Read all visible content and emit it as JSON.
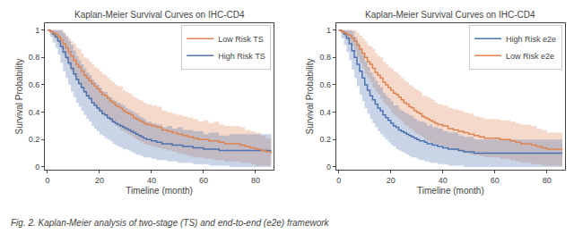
{
  "chart_data": [
    {
      "type": "step",
      "title": "Kaplan-Meier Survival Curves on IHC-CD4",
      "x_label": "Timeline (month)",
      "y_label": "Survival Probability",
      "xlim": [
        -1,
        87
      ],
      "ylim": [
        -0.02,
        1.05
      ],
      "xticks": [
        0,
        20,
        40,
        60,
        80
      ],
      "yticks": [
        0.0,
        0.2,
        0.4,
        0.6,
        0.8,
        1.0
      ],
      "grid": false,
      "legend": "upper right",
      "annotations": [
        {
          "text": "Fig. 2. Kaplan-Meier analysis of two-stage (TS) and end-to-end (e2e) framework"
        }
      ],
      "series": [
        {
          "name": "High Risk TS",
          "color": "#4C72B0",
          "x": [
            0,
            1,
            2,
            3,
            4,
            5,
            6,
            7,
            8,
            9,
            10,
            11,
            12,
            13,
            14,
            15,
            16,
            17,
            18,
            19,
            20,
            21,
            22,
            23,
            24,
            25,
            26,
            27,
            28,
            29,
            30,
            31,
            32,
            33,
            34,
            35,
            36,
            37,
            38,
            40,
            42,
            44,
            46,
            48,
            50,
            52,
            54,
            56,
            58,
            60,
            62,
            64,
            66,
            68,
            70,
            72,
            74,
            76,
            78,
            80,
            82,
            84,
            86
          ],
          "values": [
            1.0,
            0.99,
            0.97,
            0.95,
            0.92,
            0.88,
            0.84,
            0.8,
            0.76,
            0.72,
            0.68,
            0.64,
            0.61,
            0.58,
            0.55,
            0.52,
            0.5,
            0.47,
            0.45,
            0.43,
            0.41,
            0.39,
            0.38,
            0.36,
            0.35,
            0.33,
            0.32,
            0.31,
            0.3,
            0.29,
            0.28,
            0.27,
            0.26,
            0.25,
            0.24,
            0.23,
            0.22,
            0.21,
            0.2,
            0.19,
            0.18,
            0.17,
            0.17,
            0.16,
            0.16,
            0.15,
            0.15,
            0.14,
            0.14,
            0.13,
            0.13,
            0.13,
            0.12,
            0.12,
            0.12,
            0.12,
            0.12,
            0.12,
            0.12,
            0.12,
            0.12,
            0.12,
            0.12
          ],
          "lower": [
            1.0,
            0.95,
            0.91,
            0.87,
            0.82,
            0.76,
            0.7,
            0.65,
            0.6,
            0.55,
            0.51,
            0.47,
            0.44,
            0.41,
            0.38,
            0.35,
            0.33,
            0.3,
            0.28,
            0.26,
            0.24,
            0.23,
            0.21,
            0.2,
            0.19,
            0.17,
            0.16,
            0.15,
            0.14,
            0.13,
            0.13,
            0.12,
            0.11,
            0.1,
            0.09,
            0.09,
            0.08,
            0.07,
            0.07,
            0.06,
            0.05,
            0.05,
            0.04,
            0.04,
            0.03,
            0.03,
            0.03,
            0.02,
            0.02,
            0.02,
            0.01,
            0.01,
            0.01,
            0.01,
            0.0,
            0.0,
            0.0,
            0.0,
            0.0,
            0.0,
            0.0,
            0.0,
            0.0
          ],
          "upper": [
            1.0,
            1.0,
            1.0,
            1.0,
            1.0,
            1.0,
            0.98,
            0.95,
            0.92,
            0.89,
            0.85,
            0.81,
            0.78,
            0.75,
            0.72,
            0.69,
            0.67,
            0.64,
            0.62,
            0.6,
            0.58,
            0.55,
            0.55,
            0.52,
            0.51,
            0.49,
            0.48,
            0.47,
            0.46,
            0.45,
            0.43,
            0.42,
            0.41,
            0.4,
            0.39,
            0.37,
            0.36,
            0.35,
            0.33,
            0.32,
            0.31,
            0.29,
            0.3,
            0.28,
            0.29,
            0.27,
            0.27,
            0.26,
            0.26,
            0.24,
            0.25,
            0.25,
            0.23,
            0.23,
            0.24,
            0.24,
            0.24,
            0.24,
            0.24,
            0.24,
            0.24,
            0.24,
            0.24
          ]
        },
        {
          "name": "Low Risk TS",
          "color": "#DD8452",
          "x": [
            0,
            1,
            2,
            3,
            4,
            5,
            6,
            7,
            8,
            9,
            10,
            11,
            12,
            13,
            14,
            15,
            16,
            17,
            18,
            19,
            20,
            21,
            22,
            23,
            24,
            25,
            26,
            27,
            28,
            29,
            30,
            31,
            32,
            33,
            34,
            35,
            36,
            37,
            38,
            40,
            42,
            44,
            46,
            48,
            50,
            52,
            54,
            56,
            58,
            60,
            62,
            64,
            66,
            68,
            70,
            72,
            74,
            76,
            78,
            80,
            82,
            84,
            86
          ],
          "values": [
            1.0,
            0.99,
            0.98,
            0.97,
            0.95,
            0.93,
            0.9,
            0.87,
            0.84,
            0.81,
            0.78,
            0.75,
            0.73,
            0.7,
            0.67,
            0.65,
            0.63,
            0.61,
            0.59,
            0.57,
            0.55,
            0.53,
            0.52,
            0.5,
            0.48,
            0.47,
            0.45,
            0.44,
            0.43,
            0.41,
            0.4,
            0.39,
            0.38,
            0.36,
            0.35,
            0.34,
            0.33,
            0.32,
            0.31,
            0.3,
            0.29,
            0.27,
            0.26,
            0.25,
            0.24,
            0.23,
            0.22,
            0.21,
            0.2,
            0.2,
            0.19,
            0.19,
            0.18,
            0.17,
            0.17,
            0.17,
            0.16,
            0.15,
            0.14,
            0.13,
            0.12,
            0.11,
            0.1
          ],
          "lower": [
            1.0,
            0.97,
            0.95,
            0.93,
            0.9,
            0.86,
            0.82,
            0.78,
            0.74,
            0.7,
            0.66,
            0.63,
            0.6,
            0.57,
            0.54,
            0.51,
            0.49,
            0.47,
            0.45,
            0.42,
            0.4,
            0.38,
            0.37,
            0.35,
            0.33,
            0.32,
            0.3,
            0.29,
            0.27,
            0.26,
            0.25,
            0.24,
            0.23,
            0.21,
            0.2,
            0.19,
            0.18,
            0.17,
            0.16,
            0.15,
            0.14,
            0.13,
            0.12,
            0.11,
            0.1,
            0.09,
            0.08,
            0.07,
            0.07,
            0.06,
            0.06,
            0.05,
            0.05,
            0.04,
            0.04,
            0.04,
            0.03,
            0.03,
            0.02,
            0.01,
            0.01,
            0.01,
            0.0
          ],
          "upper": [
            1.0,
            1.0,
            1.0,
            1.0,
            1.0,
            1.0,
            0.98,
            0.96,
            0.94,
            0.92,
            0.9,
            0.87,
            0.86,
            0.83,
            0.8,
            0.79,
            0.77,
            0.75,
            0.73,
            0.72,
            0.7,
            0.68,
            0.67,
            0.65,
            0.63,
            0.62,
            0.6,
            0.59,
            0.59,
            0.56,
            0.55,
            0.54,
            0.53,
            0.51,
            0.5,
            0.49,
            0.48,
            0.47,
            0.46,
            0.45,
            0.44,
            0.41,
            0.4,
            0.39,
            0.38,
            0.37,
            0.36,
            0.35,
            0.33,
            0.34,
            0.32,
            0.33,
            0.31,
            0.3,
            0.3,
            0.3,
            0.29,
            0.27,
            0.26,
            0.25,
            0.23,
            0.21,
            0.2
          ]
        }
      ]
    },
    {
      "type": "step",
      "title": "Kaplan-Meier Survival Curves on IHC-CD4",
      "x_label": "Timeline (month)",
      "y_label": "Survival Probability",
      "xlim": [
        -1,
        87
      ],
      "ylim": [
        -0.02,
        1.05
      ],
      "xticks": [
        0,
        20,
        40,
        60,
        80
      ],
      "yticks": [
        0.0,
        0.2,
        0.4,
        0.6,
        0.8,
        1.0
      ],
      "grid": false,
      "legend": "upper right",
      "series": [
        {
          "name": "High Risk e2e",
          "color": "#4C72B0",
          "x": [
            0,
            1,
            2,
            3,
            4,
            5,
            6,
            7,
            8,
            9,
            10,
            11,
            12,
            13,
            14,
            15,
            16,
            17,
            18,
            19,
            20,
            21,
            22,
            23,
            24,
            25,
            26,
            27,
            28,
            29,
            30,
            31,
            32,
            33,
            34,
            35,
            36,
            37,
            38,
            40,
            42,
            44,
            46,
            48,
            50,
            52,
            54,
            56,
            58,
            60,
            62,
            64,
            66,
            68,
            70,
            72,
            74,
            76,
            78,
            80,
            82,
            84,
            86
          ],
          "values": [
            1.0,
            0.99,
            0.97,
            0.94,
            0.9,
            0.85,
            0.8,
            0.75,
            0.7,
            0.65,
            0.6,
            0.56,
            0.52,
            0.49,
            0.46,
            0.43,
            0.41,
            0.38,
            0.36,
            0.34,
            0.32,
            0.3,
            0.29,
            0.27,
            0.26,
            0.25,
            0.24,
            0.23,
            0.22,
            0.21,
            0.2,
            0.19,
            0.19,
            0.18,
            0.17,
            0.17,
            0.16,
            0.16,
            0.15,
            0.14,
            0.13,
            0.13,
            0.12,
            0.11,
            0.11,
            0.1,
            0.1,
            0.1,
            0.1,
            0.1,
            0.1,
            0.1,
            0.1,
            0.1,
            0.1,
            0.1,
            0.1,
            0.1,
            0.1,
            0.1,
            0.1,
            0.1,
            0.1
          ],
          "lower": [
            1.0,
            0.94,
            0.89,
            0.84,
            0.78,
            0.71,
            0.65,
            0.59,
            0.53,
            0.48,
            0.43,
            0.39,
            0.35,
            0.32,
            0.29,
            0.26,
            0.24,
            0.22,
            0.2,
            0.18,
            0.16,
            0.15,
            0.13,
            0.12,
            0.11,
            0.1,
            0.09,
            0.08,
            0.07,
            0.07,
            0.06,
            0.05,
            0.05,
            0.04,
            0.04,
            0.03,
            0.03,
            0.03,
            0.02,
            0.02,
            0.01,
            0.01,
            0.01,
            0.0,
            0.0,
            0.0,
            0.0,
            0.0,
            0.0,
            0.0,
            0.0,
            0.0,
            0.0,
            0.0,
            0.0,
            0.0,
            0.0,
            0.0,
            0.0,
            0.0,
            0.0,
            0.0,
            0.0
          ],
          "upper": [
            1.0,
            1.0,
            1.0,
            1.0,
            1.0,
            0.99,
            0.95,
            0.91,
            0.87,
            0.82,
            0.77,
            0.73,
            0.69,
            0.66,
            0.63,
            0.6,
            0.58,
            0.54,
            0.52,
            0.5,
            0.48,
            0.45,
            0.45,
            0.42,
            0.41,
            0.4,
            0.39,
            0.38,
            0.37,
            0.35,
            0.34,
            0.33,
            0.33,
            0.32,
            0.3,
            0.31,
            0.29,
            0.29,
            0.28,
            0.26,
            0.25,
            0.25,
            0.23,
            0.22,
            0.22,
            0.2,
            0.2,
            0.2,
            0.2,
            0.2,
            0.2,
            0.2,
            0.2,
            0.2,
            0.2,
            0.2,
            0.2,
            0.2,
            0.2,
            0.2,
            0.2,
            0.2,
            0.2
          ]
        },
        {
          "name": "Low Risk e2e",
          "color": "#DD8452",
          "x": [
            0,
            1,
            2,
            3,
            4,
            5,
            6,
            7,
            8,
            9,
            10,
            11,
            12,
            13,
            14,
            15,
            16,
            17,
            18,
            19,
            20,
            21,
            22,
            23,
            24,
            25,
            26,
            27,
            28,
            29,
            30,
            31,
            32,
            33,
            34,
            35,
            36,
            37,
            38,
            40,
            42,
            44,
            46,
            48,
            50,
            52,
            54,
            56,
            58,
            60,
            62,
            64,
            66,
            68,
            70,
            72,
            74,
            76,
            78,
            80,
            82,
            84,
            86
          ],
          "values": [
            1.0,
            0.99,
            0.98,
            0.97,
            0.96,
            0.94,
            0.92,
            0.89,
            0.86,
            0.83,
            0.8,
            0.77,
            0.75,
            0.72,
            0.69,
            0.67,
            0.65,
            0.62,
            0.6,
            0.58,
            0.56,
            0.54,
            0.53,
            0.51,
            0.49,
            0.47,
            0.46,
            0.44,
            0.43,
            0.41,
            0.4,
            0.39,
            0.37,
            0.36,
            0.35,
            0.34,
            0.33,
            0.32,
            0.31,
            0.3,
            0.28,
            0.27,
            0.26,
            0.25,
            0.24,
            0.23,
            0.22,
            0.21,
            0.21,
            0.21,
            0.2,
            0.2,
            0.19,
            0.18,
            0.17,
            0.17,
            0.16,
            0.15,
            0.14,
            0.13,
            0.13,
            0.13,
            0.13
          ],
          "lower": [
            1.0,
            0.97,
            0.95,
            0.93,
            0.91,
            0.88,
            0.84,
            0.8,
            0.76,
            0.72,
            0.68,
            0.65,
            0.62,
            0.58,
            0.55,
            0.53,
            0.5,
            0.47,
            0.45,
            0.43,
            0.4,
            0.38,
            0.37,
            0.35,
            0.33,
            0.31,
            0.3,
            0.28,
            0.27,
            0.25,
            0.24,
            0.23,
            0.22,
            0.2,
            0.19,
            0.18,
            0.17,
            0.17,
            0.16,
            0.15,
            0.13,
            0.12,
            0.11,
            0.1,
            0.09,
            0.09,
            0.08,
            0.07,
            0.07,
            0.07,
            0.06,
            0.06,
            0.05,
            0.04,
            0.03,
            0.03,
            0.02,
            0.02,
            0.01,
            0.01,
            0.01,
            0.01,
            0.01
          ],
          "upper": [
            1.0,
            1.0,
            1.0,
            1.0,
            1.0,
            1.0,
            1.0,
            0.98,
            0.96,
            0.94,
            0.92,
            0.89,
            0.88,
            0.86,
            0.83,
            0.81,
            0.8,
            0.77,
            0.75,
            0.73,
            0.72,
            0.7,
            0.69,
            0.67,
            0.65,
            0.63,
            0.62,
            0.6,
            0.59,
            0.57,
            0.56,
            0.55,
            0.52,
            0.52,
            0.51,
            0.5,
            0.49,
            0.47,
            0.46,
            0.45,
            0.43,
            0.42,
            0.41,
            0.4,
            0.39,
            0.37,
            0.36,
            0.35,
            0.35,
            0.35,
            0.34,
            0.34,
            0.33,
            0.32,
            0.31,
            0.31,
            0.3,
            0.28,
            0.27,
            0.25,
            0.25,
            0.25,
            0.25
          ]
        }
      ]
    }
  ]
}
